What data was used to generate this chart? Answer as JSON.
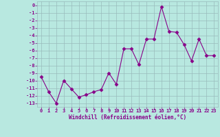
{
  "x": [
    0,
    1,
    2,
    3,
    4,
    5,
    6,
    7,
    8,
    9,
    10,
    11,
    12,
    13,
    14,
    15,
    16,
    17,
    18,
    19,
    20,
    21,
    22,
    23
  ],
  "y": [
    -9.5,
    -11.5,
    -13.0,
    -10.0,
    -11.1,
    -12.2,
    -11.9,
    -11.5,
    -11.2,
    -9.0,
    -10.5,
    -5.8,
    -5.8,
    -7.9,
    -4.5,
    -4.5,
    -0.2,
    -3.5,
    -3.6,
    -5.2,
    -7.4,
    -4.5,
    -6.7,
    -6.7
  ],
  "line_color": "#880088",
  "marker": "D",
  "marker_size": 2.5,
  "bg_color": "#b8e8e0",
  "grid_color": "#99bbbb",
  "xlabel": "Windchill (Refroidissement éolien,°C)",
  "ylim": [
    -13.5,
    0.5
  ],
  "xlim": [
    -0.5,
    23.5
  ],
  "yticks": [
    0,
    -1,
    -2,
    -3,
    -4,
    -5,
    -6,
    -7,
    -8,
    -9,
    -10,
    -11,
    -12,
    -13
  ],
  "xticks": [
    0,
    1,
    2,
    3,
    4,
    5,
    6,
    7,
    8,
    9,
    10,
    11,
    12,
    13,
    14,
    15,
    16,
    17,
    18,
    19,
    20,
    21,
    22,
    23
  ]
}
